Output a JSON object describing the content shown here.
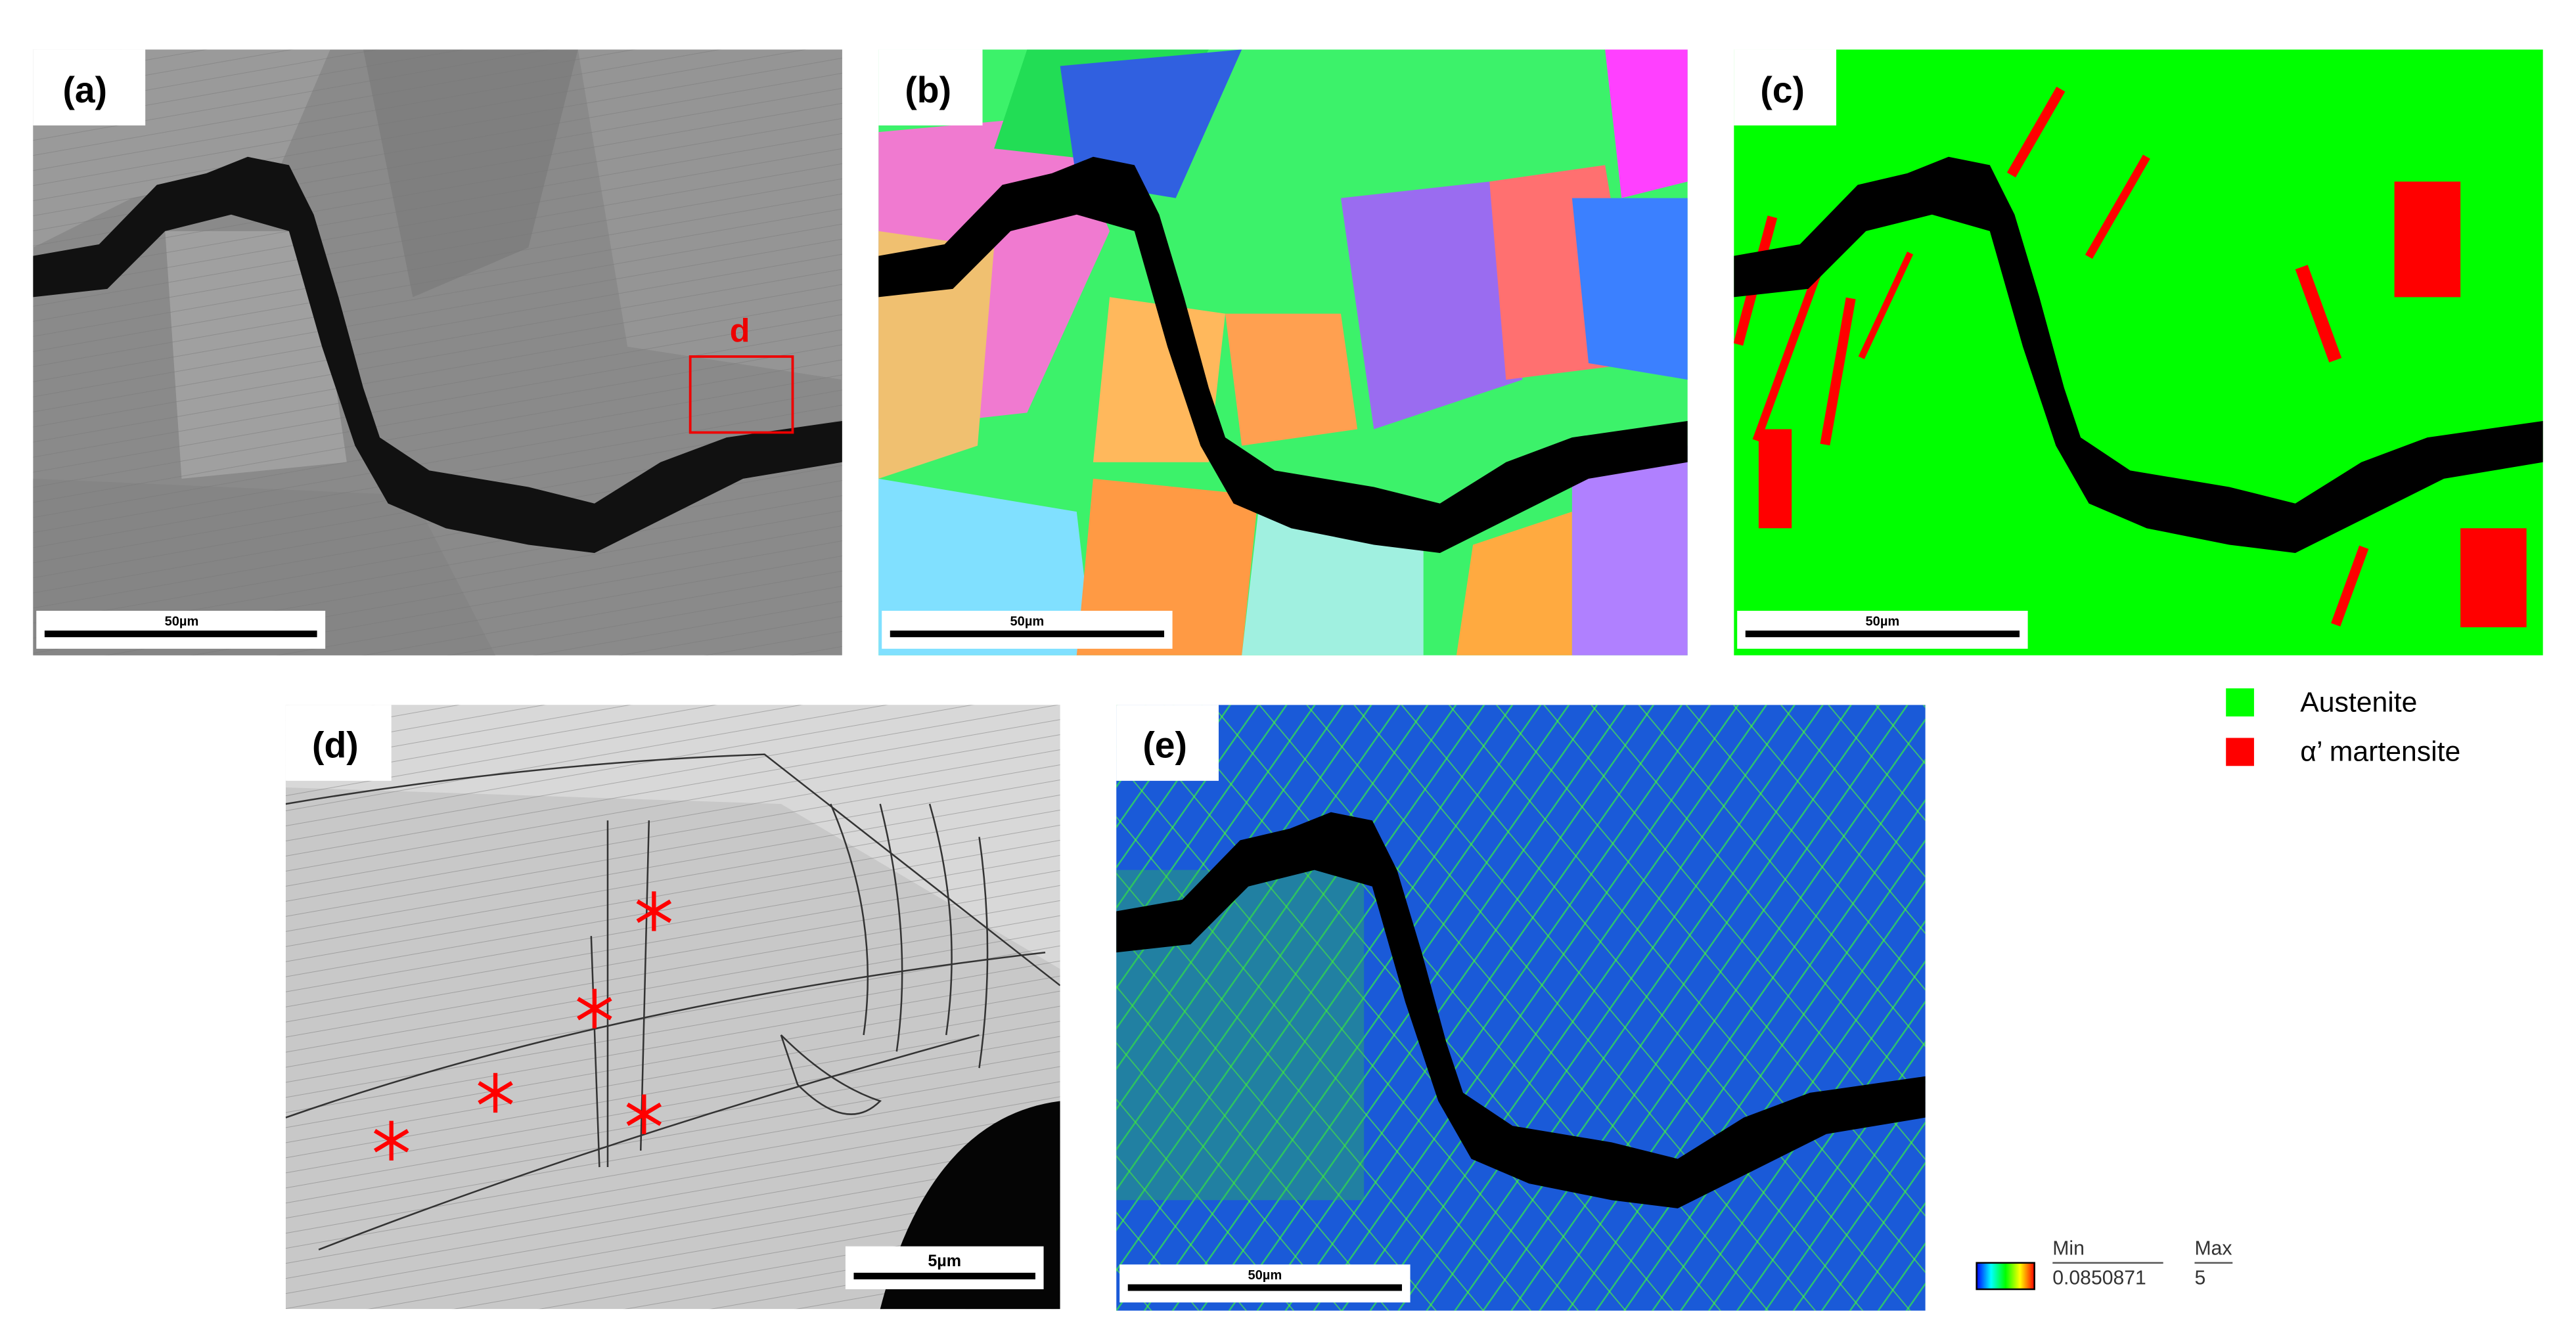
{
  "panels": [
    {
      "label": "(a)",
      "scale_bar": "50µm",
      "box_label": "d"
    },
    {
      "label": "(b)",
      "scale_bar": "50µm"
    },
    {
      "label": "(c)",
      "scale_bar": "50µm"
    },
    {
      "label": "(d)",
      "scale_bar": "5µm"
    },
    {
      "label": "(e)",
      "scale_bar": "50µm"
    }
  ],
  "legend": [
    {
      "label": "Austenite",
      "color": "#00ff00"
    },
    {
      "label": "α’ martensite",
      "color": "#ff0000"
    }
  ],
  "colorbar": {
    "min_label": "Min",
    "max_label": "Max",
    "min": 0.0850871,
    "max": 5
  }
}
